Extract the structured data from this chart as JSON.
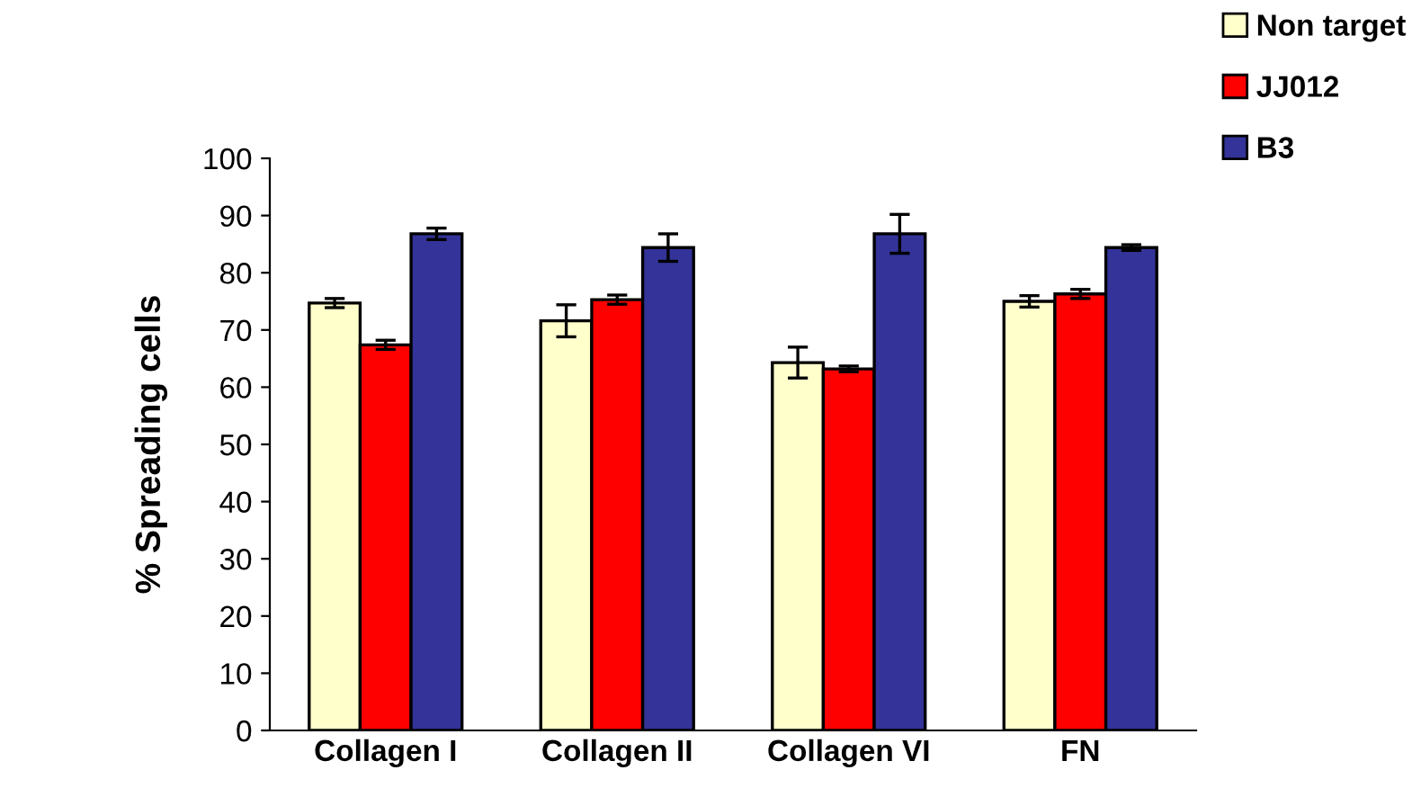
{
  "chart_data": {
    "type": "bar",
    "ylabel": "% Spreading cells",
    "categories": [
      "Collagen I",
      "Collagen II",
      "Collagen VI",
      "FN"
    ],
    "series": [
      {
        "name": "Non target",
        "color": "#ffffcc",
        "values": [
          74.7,
          71.6,
          64.3,
          75.0
        ],
        "errors": [
          0.8,
          2.8,
          2.7,
          1.0
        ]
      },
      {
        "name": "JJ012",
        "color": "#ff0000",
        "values": [
          67.4,
          75.3,
          63.2,
          76.3
        ],
        "errors": [
          0.8,
          0.8,
          0.5,
          0.8
        ]
      },
      {
        "name": "B3",
        "color": "#333399",
        "values": [
          86.8,
          84.4,
          86.8,
          84.4
        ],
        "errors": [
          1.0,
          2.4,
          3.4,
          0.5
        ]
      }
    ],
    "ylim": [
      0,
      100
    ],
    "yticks": [
      0,
      10,
      20,
      30,
      40,
      50,
      60,
      70,
      80,
      90,
      100
    ],
    "legend": "top right",
    "grid": false
  }
}
